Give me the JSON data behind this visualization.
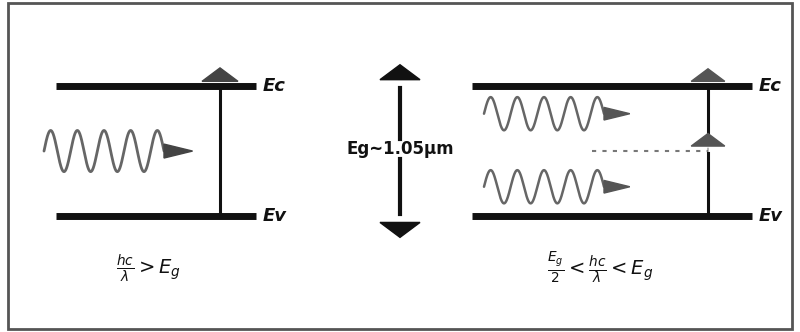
{
  "bg_color": "#ffffff",
  "border_color": "#555555",
  "line_color": "#111111",
  "arrow_color": "#111111",
  "wave_color": "#666666",
  "ec_label": "Ec",
  "ev_label": "Ev",
  "center_label": "Eg~1.05μm",
  "formula_left": "$\\frac{hc}{\\lambda} > E_g$",
  "formula_right": "$\\frac{E_g}{2} < \\frac{hc}{\\lambda} < E_g$",
  "figsize": [
    8.0,
    3.32
  ],
  "dpi": 100
}
